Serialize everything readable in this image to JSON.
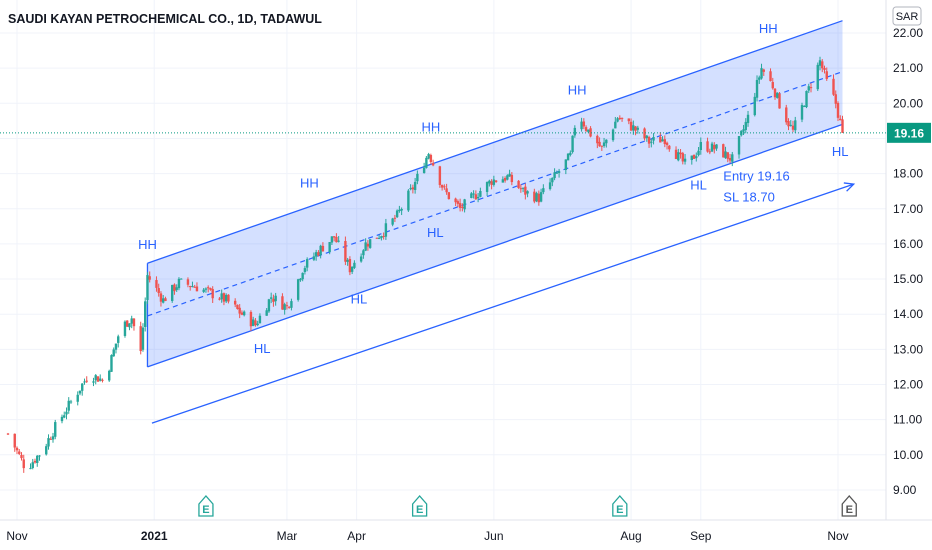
{
  "chart_data": {
    "type": "candlestick",
    "title": "SAUDI KAYAN PETROCHEMICAL CO., 1D, TADAWUL",
    "currency": "SAR",
    "last_price": "19.16",
    "y_ticks": [
      "22.00",
      "21.00",
      "20.00",
      "19.00",
      "18.00",
      "17.00",
      "16.00",
      "15.00",
      "14.00",
      "13.00",
      "12.00",
      "11.00",
      "10.00",
      "9.00"
    ],
    "x_ticks": [
      {
        "label": "Nov",
        "date": "2020-11-01"
      },
      {
        "label": "2021",
        "date": "2021-01-01",
        "bold": true
      },
      {
        "label": "Mar",
        "date": "2021-03-01"
      },
      {
        "label": "Apr",
        "date": "2021-04-01"
      },
      {
        "label": "Jun",
        "date": "2021-06-01"
      },
      {
        "label": "Aug",
        "date": "2021-08-01"
      },
      {
        "label": "Sep",
        "date": "2021-09-01"
      },
      {
        "label": "Nov",
        "date": "2021-11-01"
      }
    ],
    "price_path": [
      [
        "2020-10-28",
        10.6
      ],
      [
        "2020-11-05",
        9.6
      ],
      [
        "2020-11-12",
        10.1
      ],
      [
        "2020-11-19",
        10.9
      ],
      [
        "2020-11-26",
        11.6
      ],
      [
        "2020-12-03",
        12.3
      ],
      [
        "2020-12-10",
        12.1
      ],
      [
        "2020-12-17",
        13.6
      ],
      [
        "2020-12-22",
        13.9
      ],
      [
        "2020-12-26",
        12.9
      ],
      [
        "2020-12-29",
        15.1
      ],
      [
        "2021-01-05",
        14.4
      ],
      [
        "2021-01-12",
        14.9
      ],
      [
        "2021-01-19",
        14.8
      ],
      [
        "2021-01-26",
        14.6
      ],
      [
        "2021-02-02",
        14.4
      ],
      [
        "2021-02-09",
        14.0
      ],
      [
        "2021-02-15",
        13.7
      ],
      [
        "2021-02-22",
        14.5
      ],
      [
        "2021-03-01",
        14.2
      ],
      [
        "2021-03-08",
        15.3
      ],
      [
        "2021-03-15",
        15.8
      ],
      [
        "2021-03-22",
        16.2
      ],
      [
        "2021-03-29",
        15.3
      ],
      [
        "2021-04-05",
        16.0
      ],
      [
        "2021-04-12",
        16.3
      ],
      [
        "2021-04-19",
        16.8
      ],
      [
        "2021-04-26",
        17.6
      ],
      [
        "2021-05-03",
        18.6
      ],
      [
        "2021-05-10",
        17.5
      ],
      [
        "2021-05-17",
        17.0
      ],
      [
        "2021-05-24",
        17.4
      ],
      [
        "2021-05-31",
        17.8
      ],
      [
        "2021-06-07",
        17.9
      ],
      [
        "2021-06-14",
        17.5
      ],
      [
        "2021-06-21",
        17.3
      ],
      [
        "2021-06-28",
        17.9
      ],
      [
        "2021-07-05",
        18.5
      ],
      [
        "2021-07-08",
        19.8
      ],
      [
        "2021-07-12",
        19.3
      ],
      [
        "2021-07-19",
        18.7
      ],
      [
        "2021-07-26",
        19.6
      ],
      [
        "2021-08-02",
        19.3
      ],
      [
        "2021-08-09",
        18.9
      ],
      [
        "2021-08-16",
        19.0
      ],
      [
        "2021-08-23",
        18.4
      ],
      [
        "2021-08-26",
        18.2
      ],
      [
        "2021-09-01",
        18.8
      ],
      [
        "2021-09-08",
        18.7
      ],
      [
        "2021-09-15",
        18.4
      ],
      [
        "2021-09-22",
        19.6
      ],
      [
        "2021-09-28",
        21.0
      ],
      [
        "2021-10-03",
        20.5
      ],
      [
        "2021-10-07",
        19.8
      ],
      [
        "2021-10-12",
        19.2
      ],
      [
        "2021-10-19",
        20.4
      ],
      [
        "2021-10-24",
        21.2
      ],
      [
        "2021-10-27",
        20.6
      ],
      [
        "2021-10-31",
        20.0
      ],
      [
        "2021-11-03",
        19.16
      ]
    ],
    "channel": {
      "upper": [
        [
          "2020-12-29",
          15.45
        ],
        [
          "2021-11-03",
          22.35
        ]
      ],
      "lower": [
        [
          "2020-12-29",
          12.5
        ],
        [
          "2021-11-03",
          19.4
        ]
      ],
      "mid": [
        [
          "2020-12-29",
          13.95
        ],
        [
          "2021-11-03",
          20.9
        ]
      ],
      "projection": [
        [
          "2020-12-31",
          10.9
        ],
        [
          "2021-11-08",
          17.7
        ]
      ]
    },
    "annotations": [
      {
        "text": "HH",
        "date": "2020-12-29",
        "price": 15.85
      },
      {
        "text": "HL",
        "date": "2021-02-18",
        "price": 12.9
      },
      {
        "text": "HH",
        "date": "2021-03-11",
        "price": 17.6
      },
      {
        "text": "HL",
        "date": "2021-04-02",
        "price": 14.3
      },
      {
        "text": "HH",
        "date": "2021-05-04",
        "price": 19.2
      },
      {
        "text": "HL",
        "date": "2021-05-06",
        "price": 16.2
      },
      {
        "text": "HH",
        "date": "2021-07-08",
        "price": 20.25
      },
      {
        "text": "HL",
        "date": "2021-08-31",
        "price": 17.55
      },
      {
        "text": "HH",
        "date": "2021-10-01",
        "price": 22.0
      },
      {
        "text": "HL",
        "date": "2021-11-02",
        "price": 18.5
      }
    ],
    "trade_note": [
      "Entry 19.16",
      "SL 18.70"
    ],
    "earnings": [
      {
        "date": "2021-01-24",
        "label": "E",
        "color": "#26a69a"
      },
      {
        "date": "2021-04-29",
        "label": "E",
        "color": "#26a69a"
      },
      {
        "date": "2021-07-27",
        "label": "E",
        "color": "#26a69a"
      },
      {
        "date": "2021-11-06",
        "label": "E",
        "color": "#555555"
      }
    ],
    "colors": {
      "up": "#26a69a",
      "down": "#ef5350",
      "channel": "#2962ff",
      "channel_fill": "rgba(41,98,255,0.2)",
      "last_price": "#089981"
    }
  }
}
